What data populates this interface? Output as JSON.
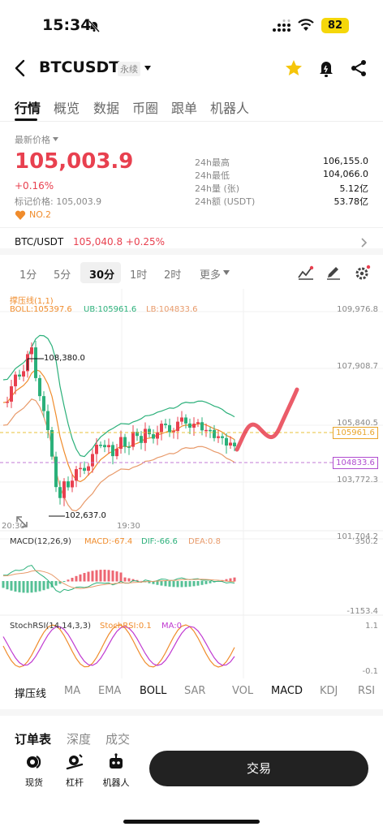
{
  "status": {
    "time": "15:34",
    "battery": "82"
  },
  "header": {
    "title": "BTCUSDT",
    "contract_type": "永续"
  },
  "tabs": [
    {
      "label": "行情"
    },
    {
      "label": "概览"
    },
    {
      "label": "数据"
    },
    {
      "label": "币圈"
    },
    {
      "label": "跟单"
    },
    {
      "label": "机器人"
    }
  ],
  "price": {
    "label": "最新价格",
    "last": "105,003.9",
    "change_pct": "+0.16%",
    "mark_price": "标记价格: 105,003.9",
    "rank": "NO.2"
  },
  "stats": [
    {
      "label": "24h最高",
      "value": "106,155.0"
    },
    {
      "label": "24h最低",
      "value": "104,066.0"
    },
    {
      "label": "24h量 (张)",
      "value": "5.12亿"
    },
    {
      "label": "24h额 (USDT)",
      "value": "53.78亿"
    }
  ],
  "reference": {
    "pair": "BTC/USDT",
    "price": "105,040.8 +0.25%"
  },
  "intervals": [
    {
      "label": "1分"
    },
    {
      "label": "5分"
    },
    {
      "label": "30分"
    },
    {
      "label": "1时"
    },
    {
      "label": "2时"
    },
    {
      "label": "更多"
    }
  ],
  "chart_data": {
    "type": "candlestick",
    "indicator_name": "撑压线(1,1)",
    "boll": {
      "label": "BOLL:105397.6",
      "ub": "UB:105961.6",
      "lb": "LB:104833.6"
    },
    "y_ticks": [
      "109,976.8",
      "107,908.7",
      "105,840.5",
      "103,772.3",
      "101,704.2"
    ],
    "price_tags": {
      "upper": "105961.6",
      "lower": "104833.6"
    },
    "annotations": {
      "high": "108,380.0",
      "low": "102,637.0"
    },
    "x_ticks": [
      "20:30",
      "19:30"
    ],
    "macd": {
      "label": "MACD(12,26,9)",
      "macd": "MACD:-67.4",
      "dif": "DIF:-66.6",
      "dea": "DEA:0.8",
      "y_top": "350.2",
      "y_bottom": "-1153.4"
    },
    "stochrsi": {
      "label": "StochRSI(14,14,3,3)",
      "value": "StochRSI:0.1",
      "ma": "MA:0",
      "y_top": "1.1",
      "y_bottom": "-0.1"
    }
  },
  "indicators": [
    {
      "label": "撑压线"
    },
    {
      "label": "MA"
    },
    {
      "label": "EMA"
    },
    {
      "label": "BOLL"
    },
    {
      "label": "SAR"
    },
    {
      "label": "VOL"
    },
    {
      "label": "MACD"
    },
    {
      "label": "KDJ"
    },
    {
      "label": "RSI"
    }
  ],
  "orderbook_tabs": [
    {
      "label": "订单表"
    },
    {
      "label": "深度"
    },
    {
      "label": "成交"
    }
  ],
  "bottom": {
    "items": [
      {
        "label": "现货"
      },
      {
        "label": "杠杆"
      },
      {
        "label": "机器人"
      }
    ],
    "trade": "交易"
  },
  "colors": {
    "up": "#e8404f",
    "down": "#2bb07a",
    "accent": "#f5d70a"
  }
}
